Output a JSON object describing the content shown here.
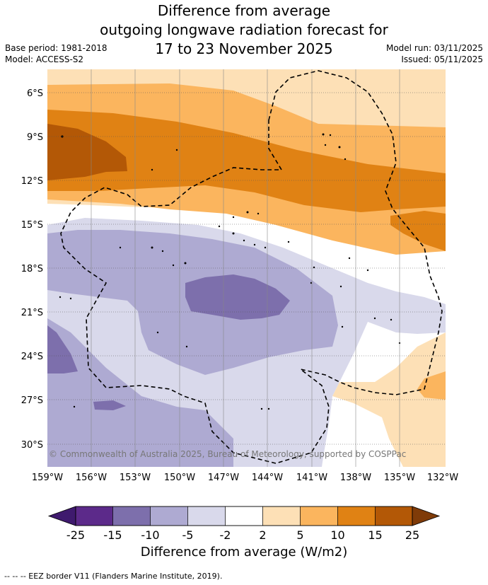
{
  "title": {
    "line1": "Difference from average",
    "line2": "outgoing longwave radiation forecast for",
    "line3": "17 to 23 November 2025"
  },
  "meta": {
    "base_period": "Base period: 1981-2018",
    "model": "Model: ACCESS-S2",
    "model_run": "Model run: 03/11/2025",
    "issued": "Issued: 05/11/2025"
  },
  "map": {
    "lat_labels": [
      "6°S",
      "9°S",
      "12°S",
      "15°S",
      "18°S",
      "21°S",
      "24°S",
      "27°S",
      "30°S"
    ],
    "lon_labels": [
      "159°W",
      "156°W",
      "153°W",
      "150°W",
      "147°W",
      "144°W",
      "141°W",
      "138°W",
      "135°W",
      "132°W"
    ],
    "copyright": "© Commonwealth of Australia 2025, Bureau of Meteorology, supported by COSPPac"
  },
  "colorbar": {
    "ticks": [
      "-25",
      "-15",
      "-10",
      "-5",
      "-2",
      "2",
      "5",
      "10",
      "15",
      "25"
    ],
    "colors": [
      "#3f1a6e",
      "#5c2a8a",
      "#7d6fac",
      "#aeaad2",
      "#d9d9eb",
      "#ffffff",
      "#fde0b6",
      "#fbb55e",
      "#e08214",
      "#b35806",
      "#7f3b08"
    ],
    "label": "Difference from average (W/m2)"
  },
  "footnote": "-- -- -- EEZ border V11 (Flanders Marine Institute, 2019)."
}
